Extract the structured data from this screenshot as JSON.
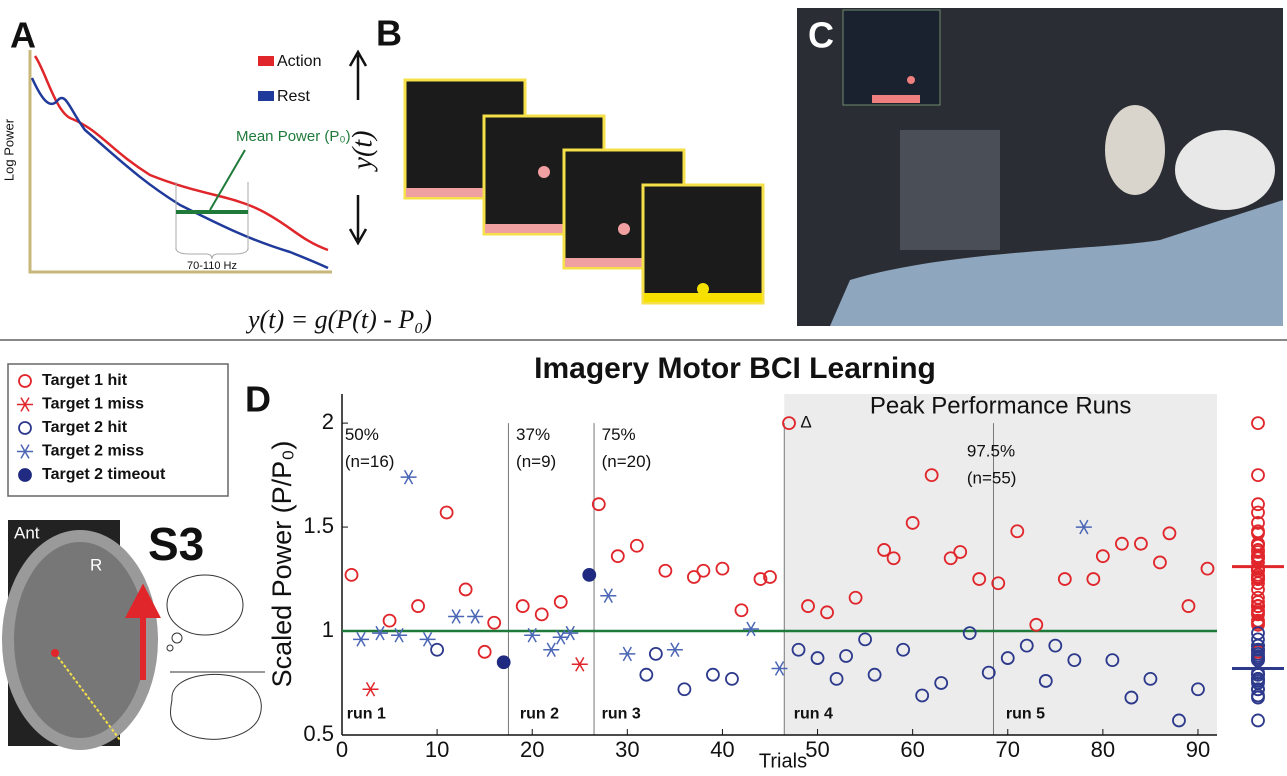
{
  "panel_a": {
    "letter": "A",
    "y_label": "Log Power",
    "legend": [
      "Action",
      "Rest"
    ],
    "mean_label": "Mean Power (P₀)",
    "band_label": "70-110 Hz",
    "formula": "y(t) = g(P(t) - P₀)"
  },
  "panel_b": {
    "letter": "B",
    "axis_label": "y(t)"
  },
  "panel_c": {
    "letter": "C"
  },
  "panel_s3": {
    "orientation": "Ant",
    "side": "R",
    "subject": "S3"
  },
  "chart_data": {
    "type": "scatter",
    "letter": "D",
    "title": "Imagery Motor BCI Learning",
    "x_label": "Trials",
    "y_label": "Scaled Power (P/P₀)",
    "xlim": [
      0,
      92
    ],
    "ylim": [
      0.5,
      2.14
    ],
    "xticks": [
      0,
      10,
      20,
      30,
      40,
      50,
      60,
      70,
      80,
      90
    ],
    "yticks": [
      0.5,
      1,
      1.5,
      2
    ],
    "reference_line": {
      "value": 1,
      "color": "#1f7a3a"
    },
    "shaded_region": {
      "x": [
        46.5,
        92
      ],
      "label": "Peak Performance Runs",
      "color": "#ececec"
    },
    "run_boundaries": [
      17.5,
      26.5,
      46.5,
      68.5
    ],
    "runs": [
      {
        "label": "run 1",
        "x": 0.5
      },
      {
        "label": "run 2",
        "x": 18.7
      },
      {
        "label": "run 3",
        "x": 27.3
      },
      {
        "label": "run 4",
        "x": 47.5
      },
      {
        "label": "run 5",
        "x": 69.8
      }
    ],
    "annotations": [
      {
        "text": "50%",
        "x": 0.3,
        "y": 1.94
      },
      {
        "text": "(n=16)",
        "x": 0.3,
        "y": 1.81
      },
      {
        "text": "37%",
        "x": 18.3,
        "y": 1.94
      },
      {
        "text": "(n=9)",
        "x": 18.3,
        "y": 1.81
      },
      {
        "text": "75%",
        "x": 27.3,
        "y": 1.94
      },
      {
        "text": "(n=20)",
        "x": 27.3,
        "y": 1.81
      },
      {
        "text": "97.5%",
        "x": 65.7,
        "y": 1.86
      },
      {
        "text": "(n=55)",
        "x": 65.7,
        "y": 1.73
      },
      {
        "text": "Δ",
        "x": 48.2,
        "y": 2.0
      }
    ],
    "series": [
      {
        "name": "Target 1 hit",
        "color": "#e0262b",
        "marker": "circle",
        "x": [
          1,
          5,
          8,
          11,
          13,
          15,
          16,
          19,
          21,
          23,
          27,
          29,
          31,
          34,
          37,
          38,
          40,
          42,
          44,
          45,
          47,
          49,
          51,
          54,
          57,
          58,
          60,
          62,
          64,
          65,
          67,
          69,
          71,
          73,
          76,
          79,
          80,
          82,
          84,
          86,
          87,
          89,
          91
        ],
        "values": [
          1.27,
          1.05,
          1.12,
          1.57,
          1.2,
          0.9,
          1.04,
          1.12,
          1.08,
          1.14,
          1.61,
          1.36,
          1.41,
          1.29,
          1.26,
          1.29,
          1.3,
          1.1,
          1.25,
          1.26,
          2.0,
          1.12,
          1.09,
          1.16,
          1.39,
          1.35,
          1.52,
          1.75,
          1.35,
          1.38,
          1.25,
          1.23,
          1.48,
          1.03,
          1.25,
          1.25,
          1.36,
          1.42,
          1.42,
          1.33,
          1.47,
          1.12,
          1.3
        ]
      },
      {
        "name": "Target 1 miss",
        "color": "#e0262b",
        "marker": "star",
        "x": [
          3,
          25
        ],
        "values": [
          0.72,
          0.84
        ]
      },
      {
        "name": "Target 2 hit",
        "color": "#2d3a8c",
        "marker": "circle",
        "x": [
          10,
          32,
          33,
          36,
          39,
          41,
          48,
          50,
          52,
          53,
          55,
          56,
          59,
          61,
          63,
          66,
          68,
          70,
          72,
          74,
          75,
          77,
          81,
          83,
          85,
          88,
          90
        ],
        "values": [
          0.91,
          0.79,
          0.89,
          0.72,
          0.79,
          0.77,
          0.91,
          0.87,
          0.77,
          0.88,
          0.96,
          0.79,
          0.91,
          0.69,
          0.75,
          0.99,
          0.8,
          0.87,
          0.93,
          0.76,
          0.93,
          0.86,
          0.86,
          0.68,
          0.77,
          0.57,
          0.72
        ]
      },
      {
        "name": "Target 2 miss",
        "color": "#4a66b5",
        "marker": "star",
        "x": [
          2,
          4,
          6,
          7,
          9,
          12,
          14,
          20,
          22,
          23,
          24,
          28,
          30,
          35,
          43,
          46,
          78
        ],
        "values": [
          0.96,
          0.99,
          0.98,
          1.74,
          0.96,
          1.07,
          1.07,
          0.98,
          0.91,
          0.97,
          0.99,
          1.17,
          0.89,
          0.91,
          1.01,
          0.82,
          1.5
        ]
      },
      {
        "name": "Target 2 timeout",
        "color": "#1f2a80",
        "marker": "filled",
        "x": [
          17,
          26
        ],
        "values": [
          0.85,
          1.27
        ]
      }
    ],
    "summary_means": [
      {
        "color": "#e0262b",
        "value": 1.31
      },
      {
        "color": "#2d3a8c",
        "value": 0.82
      }
    ]
  }
}
